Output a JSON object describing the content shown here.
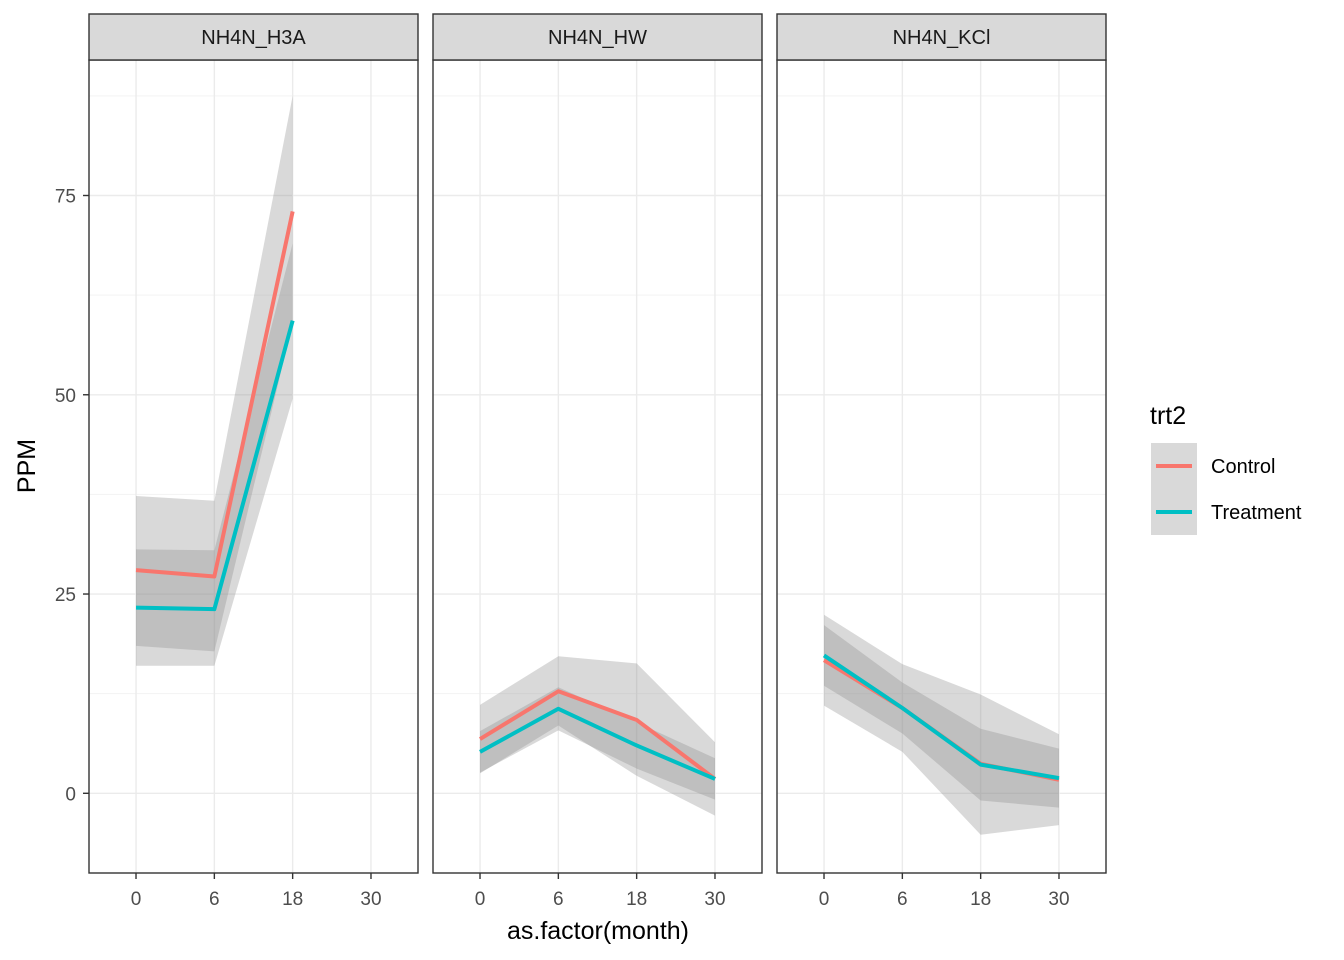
{
  "chart_data": {
    "type": "line",
    "facet_by": "variable",
    "xlabel": "as.factor(month)",
    "ylabel": "PPM",
    "categories": [
      "0",
      "6",
      "18",
      "30"
    ],
    "yticks": [
      0,
      25,
      50,
      75
    ],
    "ylim": [
      -10,
      92
    ],
    "grid": true,
    "theme": "bw",
    "legend": {
      "title": "trt2",
      "position": "right",
      "entries": [
        "Control",
        "Treatment"
      ]
    },
    "colors": {
      "Control": "#F8766D",
      "Treatment": "#00BFC4",
      "ribbon": "#8c8c8c"
    },
    "facets": [
      {
        "label": "NH4N_H3A",
        "series": [
          {
            "name": "Control",
            "x": [
              "0",
              "6",
              "18"
            ],
            "values": [
              28,
              27.2,
              73
            ],
            "ci_lower": [
              18.5,
              17.8,
              59
            ],
            "ci_upper": [
              37.3,
              36.7,
              87.5
            ]
          },
          {
            "name": "Treatment",
            "x": [
              "0",
              "6",
              "18"
            ],
            "values": [
              23.3,
              23.1,
              59.3
            ],
            "ci_lower": [
              16,
              16,
              49.5
            ],
            "ci_upper": [
              30.6,
              30.5,
              69
            ]
          }
        ]
      },
      {
        "label": "NH4N_HW",
        "series": [
          {
            "name": "Control",
            "x": [
              "0",
              "6",
              "18",
              "30"
            ],
            "values": [
              6.8,
              12.8,
              9.2,
              1.8
            ],
            "ci_lower": [
              2.5,
              8.5,
              2.2,
              -2.8
            ],
            "ci_upper": [
              11.1,
              17.2,
              16.3,
              6.4
            ]
          },
          {
            "name": "Treatment",
            "x": [
              "0",
              "6",
              "18",
              "30"
            ],
            "values": [
              5.2,
              10.6,
              6,
              1.8
            ],
            "ci_lower": [
              2.6,
              7.9,
              3.1,
              -0.8
            ],
            "ci_upper": [
              7.8,
              13.3,
              8.9,
              4.4
            ]
          }
        ]
      },
      {
        "label": "NH4N_KCl",
        "series": [
          {
            "name": "Control",
            "x": [
              "0",
              "6",
              "18",
              "30"
            ],
            "values": [
              16.7,
              10.7,
              3.7,
              1.7
            ],
            "ci_lower": [
              11,
              5.2,
              -5.2,
              -4
            ],
            "ci_upper": [
              22.4,
              16.2,
              12.4,
              7.4
            ]
          },
          {
            "name": "Treatment",
            "x": [
              "0",
              "6",
              "18",
              "30"
            ],
            "values": [
              17.3,
              10.7,
              3.6,
              1.9
            ],
            "ci_lower": [
              13.5,
              7.5,
              -0.9,
              -1.8
            ],
            "ci_upper": [
              21.1,
              13.9,
              8.1,
              5.6
            ]
          }
        ]
      }
    ]
  }
}
